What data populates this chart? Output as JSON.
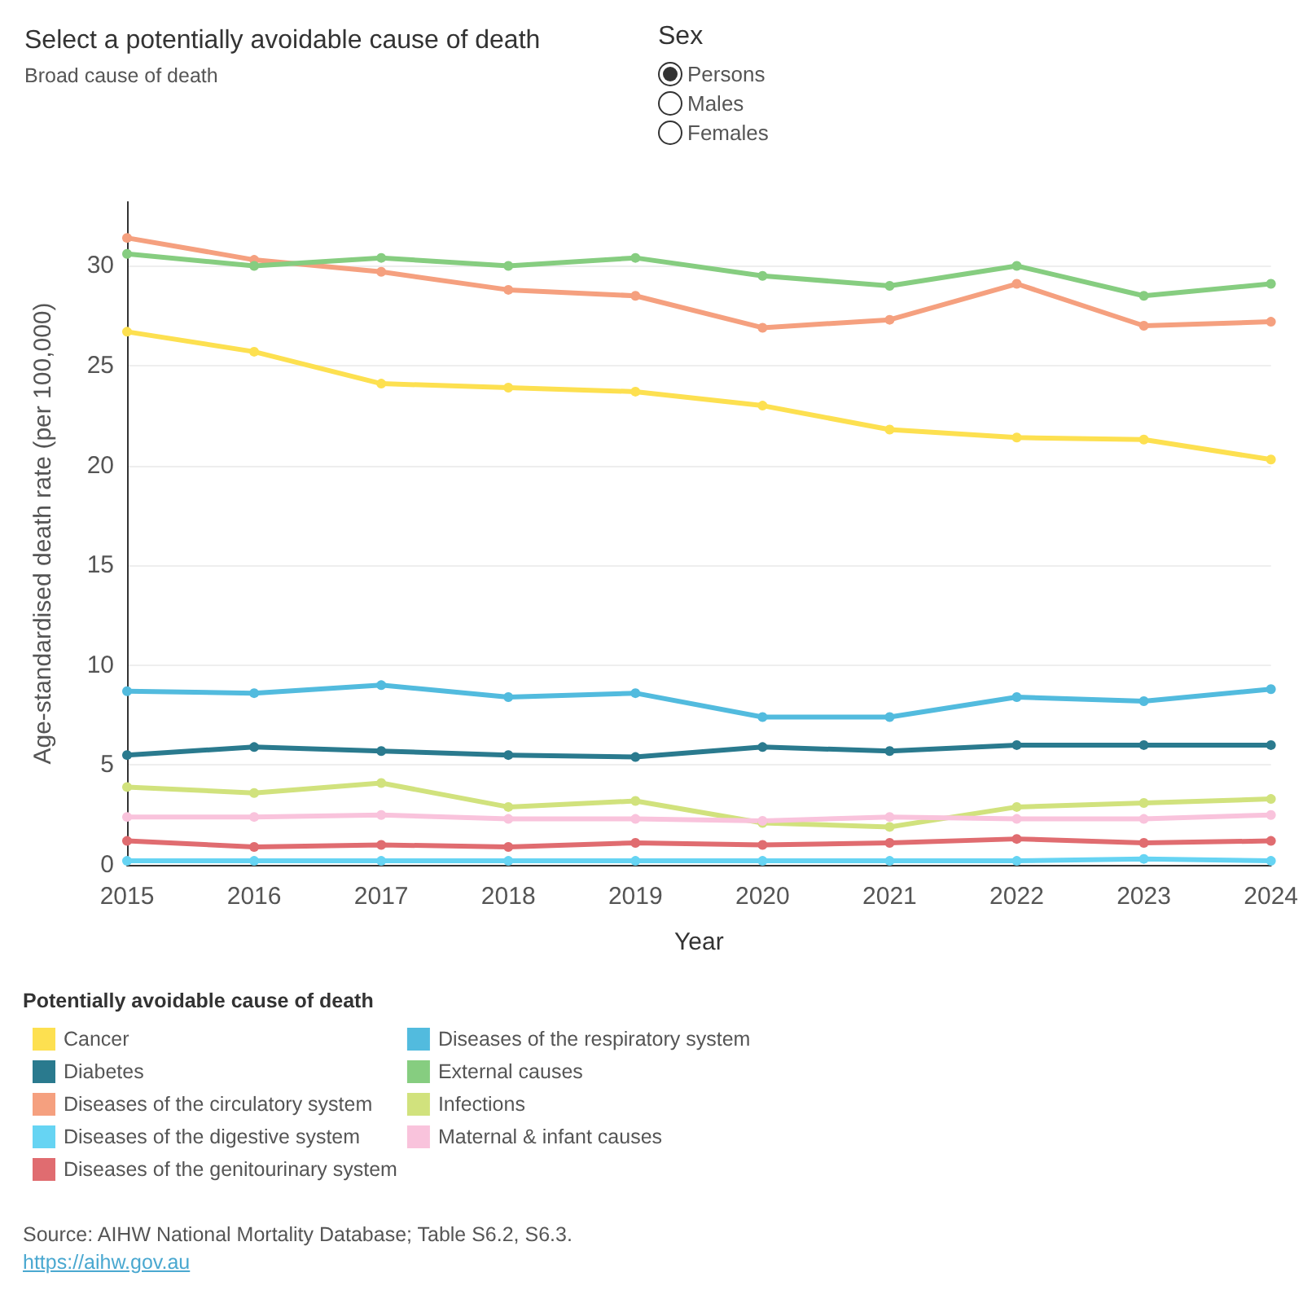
{
  "chart_data": {
    "type": "line",
    "title": "Select a potentially avoidable cause of death",
    "subtitle": "Broad cause of death",
    "xlabel": "Year",
    "ylabel": "Age-standardised death rate (per 100,000)",
    "legend_title": "Potentially avoidable cause of death",
    "annotations": [
      "Sex",
      "Persons",
      "Males",
      "Females",
      "Source: AIHW National Mortality Database; Table S6.2, S6.3.",
      "https://aihw.gov.au"
    ],
    "categories": [
      "2015",
      "2016",
      "2017",
      "2018",
      "2019",
      "2020",
      "2021",
      "2022",
      "2023",
      "2024"
    ],
    "series": [
      {
        "name": "Cancer",
        "color": "#fde050",
        "values": [
          26.7,
          25.7,
          24.1,
          23.9,
          23.7,
          23.0,
          21.8,
          21.4,
          21.3,
          20.3
        ]
      },
      {
        "name": "Diabetes",
        "color": "#2a7a8e",
        "values": [
          5.5,
          5.9,
          5.7,
          5.5,
          5.4,
          5.9,
          5.7,
          6.0,
          6.0,
          6.0
        ]
      },
      {
        "name": "Diseases of the circulatory system",
        "color": "#f5a07f",
        "values": [
          31.4,
          30.3,
          29.7,
          28.8,
          28.5,
          26.9,
          27.3,
          29.1,
          27.0,
          27.2
        ]
      },
      {
        "name": "Diseases of the digestive system",
        "color": "#66d4f3",
        "values": [
          0.2,
          0.2,
          0.2,
          0.2,
          0.2,
          0.2,
          0.2,
          0.2,
          0.3,
          0.2
        ]
      },
      {
        "name": "Diseases of the genitourinary system",
        "color": "#e06c70",
        "values": [
          1.2,
          0.9,
          1.0,
          0.9,
          1.1,
          1.0,
          1.1,
          1.3,
          1.1,
          1.2
        ]
      },
      {
        "name": "Diseases of the respiratory system",
        "color": "#52bbde",
        "values": [
          8.7,
          8.6,
          9.0,
          8.4,
          8.6,
          7.4,
          7.4,
          8.4,
          8.2,
          8.8
        ]
      },
      {
        "name": "External causes",
        "color": "#86cd80",
        "values": [
          30.6,
          30.0,
          30.4,
          30.0,
          30.4,
          29.5,
          29.0,
          30.0,
          28.5,
          29.1
        ]
      },
      {
        "name": "Infections",
        "color": "#d1e27d",
        "values": [
          3.9,
          3.6,
          4.1,
          2.9,
          3.2,
          2.1,
          1.9,
          2.9,
          3.1,
          3.3
        ]
      },
      {
        "name": "Maternal & infant causes",
        "color": "#f9c3dc",
        "values": [
          2.4,
          2.4,
          2.5,
          2.3,
          2.3,
          2.2,
          2.4,
          2.3,
          2.3,
          2.5
        ]
      }
    ],
    "ylim": [
      0,
      33.2
    ],
    "yticks": [
      0,
      5,
      10,
      15,
      20,
      25,
      30
    ],
    "grid": "y",
    "legend": "bottom left",
    "marker": "circle",
    "line_style": "solid"
  }
}
